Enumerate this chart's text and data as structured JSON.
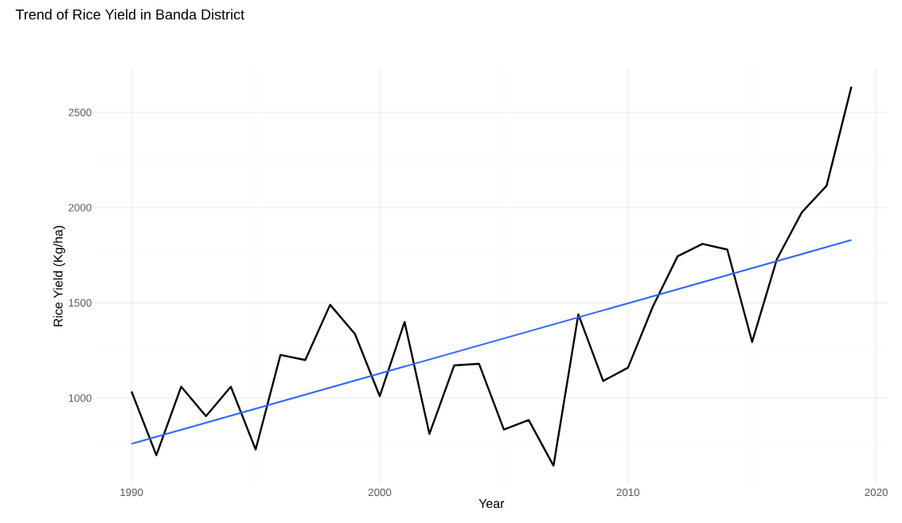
{
  "chart_data": {
    "type": "line",
    "title": "Trend of Rice Yield in Banda District",
    "xlabel": "Year",
    "ylabel": "Rice Yield (Kg/ha)",
    "x": [
      1990,
      1991,
      1992,
      1993,
      1994,
      1995,
      1996,
      1997,
      1998,
      1999,
      2000,
      2001,
      2002,
      2003,
      2004,
      2005,
      2006,
      2007,
      2008,
      2009,
      2010,
      2011,
      2012,
      2013,
      2014,
      2015,
      2016,
      2017,
      2018,
      2019
    ],
    "series": [
      {
        "color": "#000000",
        "values": [
          1035,
          700,
          1060,
          905,
          1060,
          730,
          1227,
          1200,
          1490,
          1337,
          1010,
          1400,
          812,
          1172,
          1180,
          835,
          885,
          645,
          1440,
          1090,
          1160,
          1480,
          1745,
          1810,
          1780,
          1295,
          1730,
          1975,
          2115,
          2635
        ]
      },
      {
        "type": "line",
        "color": "#3366ff",
        "x": [
          1990,
          2019
        ],
        "values": [
          760,
          1830
        ]
      }
    ],
    "xlim": [
      1988.55,
      2020.45
    ],
    "ylim": [
      545,
      2735
    ],
    "xticks": [
      1990,
      2000,
      2010,
      2020
    ],
    "yticks": [
      1000,
      1500,
      2000,
      2500
    ],
    "grid": true,
    "marker": "none",
    "line_style": "solid"
  }
}
